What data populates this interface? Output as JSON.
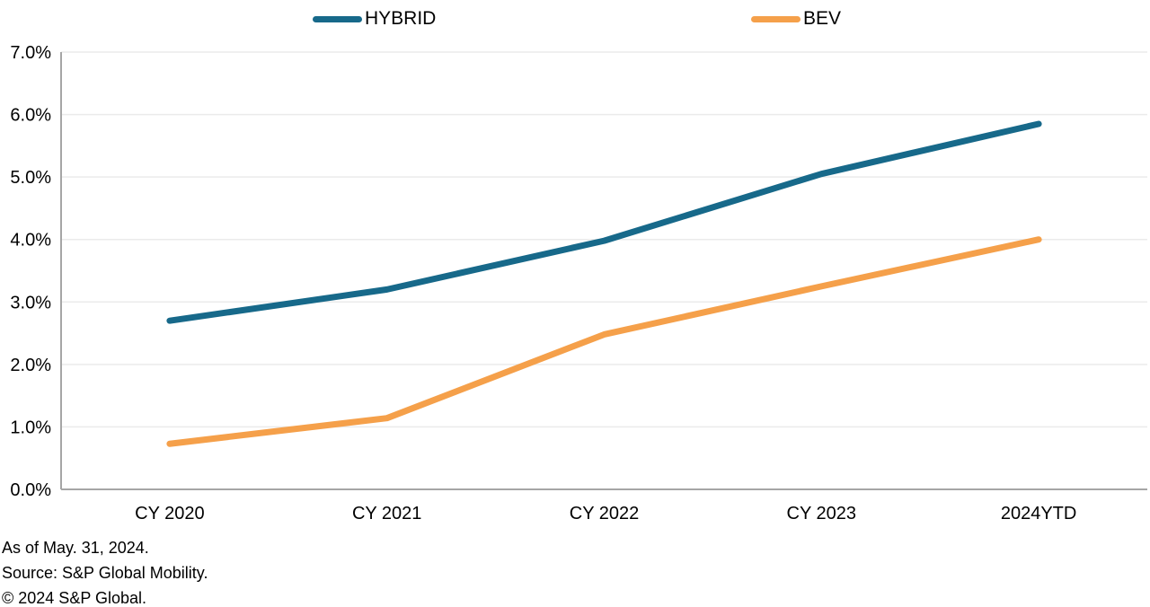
{
  "legend": {
    "items": [
      {
        "label": "HYBRID",
        "color": "#17698A"
      },
      {
        "label": "BEV",
        "color": "#F5A04A"
      }
    ]
  },
  "chart_data": {
    "type": "line",
    "categories": [
      "CY 2020",
      "CY 2021",
      "CY 2022",
      "CY 2023",
      "2024YTD"
    ],
    "series": [
      {
        "name": "HYBRID",
        "color": "#17698A",
        "values": [
          2.7,
          3.2,
          3.98,
          5.05,
          5.85
        ]
      },
      {
        "name": "BEV",
        "color": "#F5A04A",
        "values": [
          0.73,
          1.14,
          2.48,
          3.25,
          4.0
        ]
      }
    ],
    "title": "",
    "xlabel": "",
    "ylabel": "",
    "ylim": [
      0,
      7
    ],
    "ytick_step": 1,
    "ytick_labels": [
      "0.0%",
      "1.0%",
      "2.0%",
      "3.0%",
      "4.0%",
      "5.0%",
      "6.0%",
      "7.0%"
    ],
    "grid": "horizontal",
    "gridline_color": "#ebebeb",
    "axis_color": "#a6a6a6",
    "tick_label_color": "#000000",
    "legend_position": "top"
  },
  "footer": {
    "as_of": "As of May. 31, 2024.",
    "source": "Source: S&P Global Mobility.",
    "copyright": "© 2024 S&P Global."
  }
}
